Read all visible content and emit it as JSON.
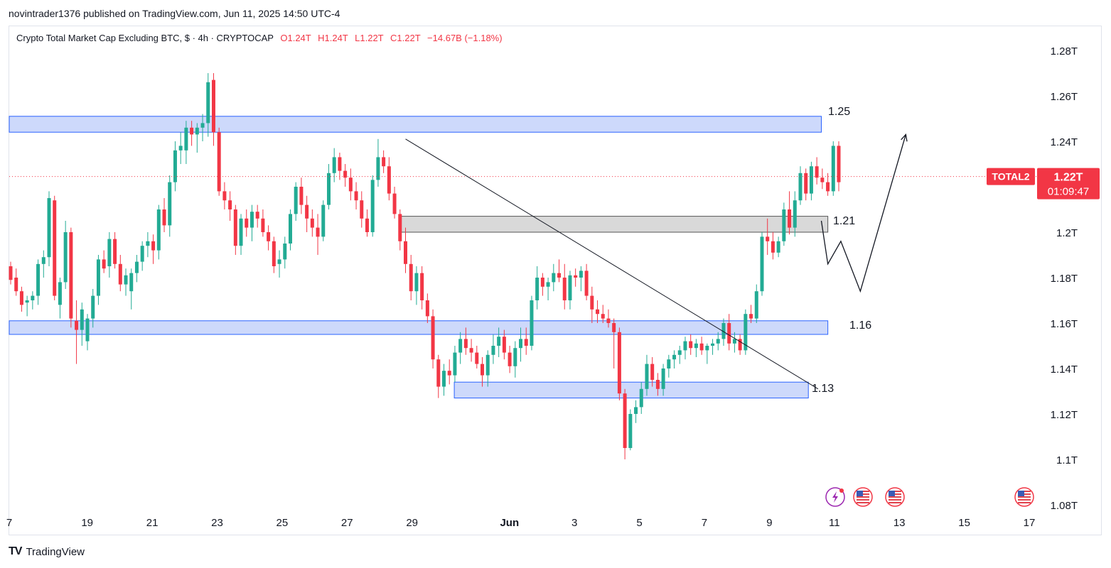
{
  "header": {
    "publish_line": "novintrader1376 published on TradingView.com, Jun 11, 2025 14:50 UTC-4"
  },
  "legend": {
    "symbol_line": "Crypto Total Market Cap Excluding BTC, $ · 4h · CRYPTOCAP",
    "open": "O1.24T",
    "high": "H1.24T",
    "low": "L1.22T",
    "close": "C1.22T",
    "change": "−14.67B (−1.18%)"
  },
  "footer": {
    "brand": "TradingView",
    "logo_glyph": "TV"
  },
  "colors": {
    "up": "#22ab94",
    "down": "#f23645",
    "zone_fill": "#cdd9fb",
    "zone_border": "#2962ff",
    "gray_fill": "#d9d9d9",
    "gray_border": "#555555",
    "axis_text": "#131722",
    "price_label_bg": "#f23645"
  },
  "chart_data": {
    "type": "candlestick",
    "title": "Crypto Total Market Cap Excluding BTC",
    "symbol": "TOTAL2",
    "unit": "T (trillion USD)",
    "timeframe": "4h",
    "ylim": [
      1.08,
      1.29
    ],
    "y_ticks": [
      "1.28T",
      "1.26T",
      "1.24T",
      "1.22T",
      "1.2T",
      "1.18T",
      "1.16T",
      "1.14T",
      "1.12T",
      "1.1T",
      "1.08T"
    ],
    "y_tick_values": [
      1.28,
      1.26,
      1.24,
      1.22,
      1.2,
      1.18,
      1.16,
      1.14,
      1.12,
      1.1,
      1.08
    ],
    "x_ticks": [
      "7",
      "19",
      "21",
      "23",
      "25",
      "27",
      "29",
      "Jun",
      "3",
      "5",
      "7",
      "9",
      "11",
      "13",
      "15",
      "17"
    ],
    "x_tick_days": [
      16.6,
      19,
      21,
      23,
      25,
      27,
      29,
      32,
      34,
      36,
      38,
      40,
      42,
      44,
      46,
      48
    ],
    "x_day_range": [
      16.6,
      49
    ],
    "last_price": {
      "symbol": "TOTAL2",
      "value": "1.22T",
      "countdown": "01:09:47",
      "price": 1.2245
    },
    "zones": [
      {
        "name": "resistance-zone-1.25",
        "label": "1.25",
        "from_day": 16.6,
        "to_day": 41.6,
        "low": 1.244,
        "high": 1.251
      },
      {
        "name": "resistance-zone-1.21",
        "label": "1.21",
        "from_day": 28.6,
        "to_day": 41.8,
        "low": 1.2,
        "high": 1.207,
        "gray": true
      },
      {
        "name": "support-zone-1.16",
        "label": "1.16",
        "from_day": 16.6,
        "to_day": 41.8,
        "low": 1.155,
        "high": 1.161
      },
      {
        "name": "support-zone-1.13",
        "label": "1.13",
        "from_day": 30.3,
        "to_day": 41.2,
        "low": 1.127,
        "high": 1.134
      }
    ],
    "trendline": {
      "from": {
        "day": 28.8,
        "price": 1.241
      },
      "to": {
        "day": 41.5,
        "price": 1.131
      }
    },
    "projection": [
      {
        "day": 41.6,
        "price": 1.205
      },
      {
        "day": 41.8,
        "price": 1.186
      },
      {
        "day": 42.2,
        "price": 1.196
      },
      {
        "day": 42.8,
        "price": 1.174
      },
      {
        "day": 44.2,
        "price": 1.243
      }
    ],
    "candles": [
      [
        1.185,
        1.187,
        1.177,
        1.179
      ],
      [
        1.18,
        1.184,
        1.172,
        1.174
      ],
      [
        1.174,
        1.176,
        1.165,
        1.168
      ],
      [
        1.169,
        1.172,
        1.163,
        1.17
      ],
      [
        1.17,
        1.174,
        1.166,
        1.172
      ],
      [
        1.172,
        1.188,
        1.168,
        1.186
      ],
      [
        1.186,
        1.192,
        1.18,
        1.189
      ],
      [
        1.189,
        1.218,
        1.185,
        1.215
      ],
      [
        1.214,
        1.216,
        1.17,
        1.172
      ],
      [
        1.168,
        1.18,
        1.162,
        1.178
      ],
      [
        1.178,
        1.205,
        1.175,
        1.2
      ],
      [
        1.2,
        1.202,
        1.158,
        1.162
      ],
      [
        1.161,
        1.17,
        1.142,
        1.157
      ],
      [
        1.157,
        1.169,
        1.15,
        1.166
      ],
      [
        1.152,
        1.164,
        1.148,
        1.162
      ],
      [
        1.162,
        1.175,
        1.158,
        1.172
      ],
      [
        1.172,
        1.19,
        1.168,
        1.188
      ],
      [
        1.188,
        1.192,
        1.182,
        1.184
      ],
      [
        1.185,
        1.2,
        1.18,
        1.197
      ],
      [
        1.197,
        1.2,
        1.184,
        1.186
      ],
      [
        1.186,
        1.19,
        1.174,
        1.177
      ],
      [
        1.177,
        1.184,
        1.172,
        1.181
      ],
      [
        1.174,
        1.184,
        1.166,
        1.182
      ],
      [
        1.182,
        1.19,
        1.178,
        1.187
      ],
      [
        1.187,
        1.196,
        1.183,
        1.194
      ],
      [
        1.194,
        1.2,
        1.189,
        1.196
      ],
      [
        1.196,
        1.199,
        1.186,
        1.192
      ],
      [
        1.192,
        1.212,
        1.188,
        1.21
      ],
      [
        1.21,
        1.215,
        1.2,
        1.203
      ],
      [
        1.203,
        1.225,
        1.198,
        1.222
      ],
      [
        1.222,
        1.24,
        1.218,
        1.236
      ],
      [
        1.236,
        1.244,
        1.23,
        1.238
      ],
      [
        1.236,
        1.249,
        1.23,
        1.246
      ],
      [
        1.246,
        1.249,
        1.238,
        1.243
      ],
      [
        1.243,
        1.248,
        1.235,
        1.246
      ],
      [
        1.246,
        1.252,
        1.24,
        1.248
      ],
      [
        1.248,
        1.27,
        1.242,
        1.266
      ],
      [
        1.267,
        1.27,
        1.238,
        1.244
      ],
      [
        1.244,
        1.246,
        1.216,
        1.218
      ],
      [
        1.218,
        1.222,
        1.21,
        1.214
      ],
      [
        1.214,
        1.218,
        1.205,
        1.21
      ],
      [
        1.21,
        1.212,
        1.19,
        1.194
      ],
      [
        1.194,
        1.208,
        1.19,
        1.206
      ],
      [
        1.206,
        1.21,
        1.198,
        1.202
      ],
      [
        1.202,
        1.212,
        1.196,
        1.209
      ],
      [
        1.209,
        1.212,
        1.202,
        1.206
      ],
      [
        1.206,
        1.21,
        1.198,
        1.2
      ],
      [
        1.2,
        1.203,
        1.192,
        1.196
      ],
      [
        1.196,
        1.198,
        1.182,
        1.185
      ],
      [
        1.186,
        1.192,
        1.18,
        1.188
      ],
      [
        1.188,
        1.198,
        1.184,
        1.195
      ],
      [
        1.195,
        1.21,
        1.192,
        1.208
      ],
      [
        1.208,
        1.222,
        1.205,
        1.22
      ],
      [
        1.22,
        1.224,
        1.208,
        1.212
      ],
      [
        1.212,
        1.216,
        1.2,
        1.206
      ],
      [
        1.206,
        1.21,
        1.198,
        1.202
      ],
      [
        1.202,
        1.208,
        1.19,
        1.198
      ],
      [
        1.198,
        1.214,
        1.196,
        1.212
      ],
      [
        1.212,
        1.23,
        1.21,
        1.226
      ],
      [
        1.226,
        1.237,
        1.222,
        1.233
      ],
      [
        1.233,
        1.235,
        1.223,
        1.227
      ],
      [
        1.227,
        1.23,
        1.22,
        1.224
      ],
      [
        1.224,
        1.228,
        1.214,
        1.218
      ],
      [
        1.218,
        1.222,
        1.21,
        1.214
      ],
      [
        1.214,
        1.218,
        1.202,
        1.206
      ],
      [
        1.206,
        1.21,
        1.198,
        1.2
      ],
      [
        1.2,
        1.225,
        1.198,
        1.223
      ],
      [
        1.223,
        1.241,
        1.22,
        1.233
      ],
      [
        1.233,
        1.236,
        1.226,
        1.229
      ],
      [
        1.229,
        1.233,
        1.214,
        1.217
      ],
      [
        1.217,
        1.22,
        1.206,
        1.208
      ],
      [
        1.208,
        1.21,
        1.192,
        1.196
      ],
      [
        1.196,
        1.202,
        1.182,
        1.186
      ],
      [
        1.186,
        1.19,
        1.17,
        1.174
      ],
      [
        1.174,
        1.185,
        1.168,
        1.182
      ],
      [
        1.182,
        1.185,
        1.166,
        1.17
      ],
      [
        1.17,
        1.173,
        1.16,
        1.163
      ],
      [
        1.163,
        1.166,
        1.14,
        1.144
      ],
      [
        1.144,
        1.146,
        1.127,
        1.132
      ],
      [
        1.132,
        1.142,
        1.128,
        1.139
      ],
      [
        1.139,
        1.144,
        1.133,
        1.137
      ],
      [
        1.137,
        1.15,
        1.134,
        1.147
      ],
      [
        1.147,
        1.156,
        1.142,
        1.153
      ],
      [
        1.153,
        1.158,
        1.146,
        1.149
      ],
      [
        1.149,
        1.153,
        1.143,
        1.147
      ],
      [
        1.147,
        1.15,
        1.14,
        1.142
      ],
      [
        1.142,
        1.145,
        1.132,
        1.137
      ],
      [
        1.137,
        1.148,
        1.132,
        1.146
      ],
      [
        1.146,
        1.155,
        1.142,
        1.15
      ],
      [
        1.15,
        1.158,
        1.145,
        1.154
      ],
      [
        1.154,
        1.157,
        1.144,
        1.147
      ],
      [
        1.147,
        1.15,
        1.138,
        1.141
      ],
      [
        1.141,
        1.152,
        1.136,
        1.149
      ],
      [
        1.149,
        1.158,
        1.143,
        1.153
      ],
      [
        1.153,
        1.158,
        1.146,
        1.15
      ],
      [
        1.15,
        1.172,
        1.148,
        1.17
      ],
      [
        1.17,
        1.185,
        1.166,
        1.18
      ],
      [
        1.18,
        1.182,
        1.172,
        1.176
      ],
      [
        1.176,
        1.18,
        1.17,
        1.178
      ],
      [
        1.178,
        1.186,
        1.174,
        1.182
      ],
      [
        1.182,
        1.188,
        1.178,
        1.18
      ],
      [
        1.18,
        1.186,
        1.166,
        1.17
      ],
      [
        1.17,
        1.183,
        1.166,
        1.181
      ],
      [
        1.181,
        1.184,
        1.176,
        1.18
      ],
      [
        1.18,
        1.185,
        1.174,
        1.183
      ],
      [
        1.183,
        1.186,
        1.17,
        1.172
      ],
      [
        1.172,
        1.176,
        1.16,
        1.166
      ],
      [
        1.166,
        1.17,
        1.16,
        1.164
      ],
      [
        1.164,
        1.168,
        1.16,
        1.162
      ],
      [
        1.162,
        1.166,
        1.158,
        1.16
      ],
      [
        1.16,
        1.162,
        1.14,
        1.156
      ],
      [
        1.156,
        1.158,
        1.126,
        1.129
      ],
      [
        1.129,
        1.131,
        1.1,
        1.105
      ],
      [
        1.105,
        1.122,
        1.104,
        1.12
      ],
      [
        1.12,
        1.126,
        1.116,
        1.123
      ],
      [
        1.123,
        1.134,
        1.12,
        1.131
      ],
      [
        1.131,
        1.146,
        1.128,
        1.142
      ],
      [
        1.142,
        1.145,
        1.132,
        1.135
      ],
      [
        1.135,
        1.138,
        1.128,
        1.131
      ],
      [
        1.131,
        1.142,
        1.128,
        1.14
      ],
      [
        1.14,
        1.146,
        1.136,
        1.144
      ],
      [
        1.144,
        1.148,
        1.14,
        1.146
      ],
      [
        1.146,
        1.15,
        1.142,
        1.148
      ],
      [
        1.148,
        1.154,
        1.144,
        1.152
      ],
      [
        1.152,
        1.155,
        1.146,
        1.149
      ],
      [
        1.149,
        1.153,
        1.145,
        1.151
      ],
      [
        1.151,
        1.154,
        1.146,
        1.148
      ],
      [
        1.148,
        1.151,
        1.142,
        1.15
      ],
      [
        1.15,
        1.153,
        1.146,
        1.151
      ],
      [
        1.151,
        1.156,
        1.148,
        1.153
      ],
      [
        1.153,
        1.162,
        1.15,
        1.16
      ],
      [
        1.16,
        1.164,
        1.148,
        1.151
      ],
      [
        1.151,
        1.156,
        1.147,
        1.153
      ],
      [
        1.153,
        1.155,
        1.146,
        1.148
      ],
      [
        1.148,
        1.166,
        1.146,
        1.164
      ],
      [
        1.164,
        1.168,
        1.16,
        1.162
      ],
      [
        1.162,
        1.177,
        1.16,
        1.174
      ],
      [
        1.174,
        1.2,
        1.172,
        1.198
      ],
      [
        1.198,
        1.206,
        1.19,
        1.196
      ],
      [
        1.196,
        1.2,
        1.188,
        1.191
      ],
      [
        1.191,
        1.198,
        1.189,
        1.196
      ],
      [
        1.196,
        1.213,
        1.194,
        1.21
      ],
      [
        1.21,
        1.218,
        1.199,
        1.202
      ],
      [
        1.202,
        1.218,
        1.198,
        1.214
      ],
      [
        1.214,
        1.229,
        1.212,
        1.226
      ],
      [
        1.226,
        1.228,
        1.214,
        1.217
      ],
      [
        1.217,
        1.231,
        1.214,
        1.229
      ],
      [
        1.229,
        1.233,
        1.221,
        1.224
      ],
      [
        1.224,
        1.228,
        1.219,
        1.222
      ],
      [
        1.222,
        1.226,
        1.216,
        1.218
      ],
      [
        1.218,
        1.24,
        1.216,
        1.238
      ],
      [
        1.238,
        1.24,
        1.218,
        1.222
      ]
    ]
  }
}
